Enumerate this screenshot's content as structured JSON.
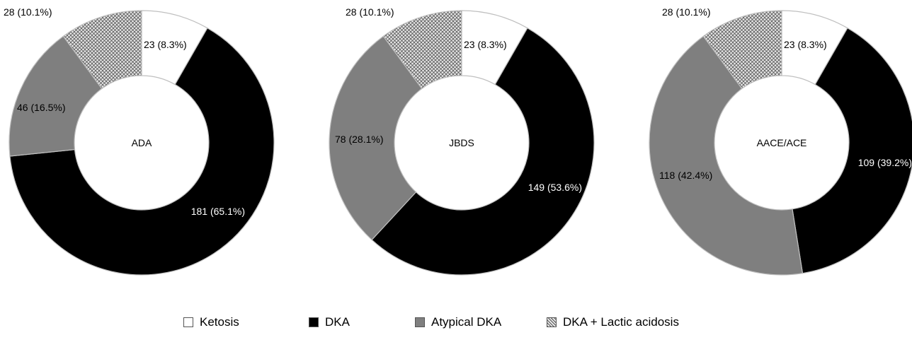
{
  "chart_data": [
    {
      "type": "pie",
      "center_label": "ADA",
      "categories": [
        "Ketosis",
        "DKA",
        "Atypical DKA",
        "DKA + Lactic acidosis"
      ],
      "values": [
        23,
        181,
        46,
        28
      ],
      "labels": [
        "23 (8.3%)",
        "181 (65.1%)",
        "46 (16.5%)",
        "28 (10.1%)"
      ]
    },
    {
      "type": "pie",
      "center_label": "JBDS",
      "categories": [
        "Ketosis",
        "DKA",
        "Atypical DKA",
        "DKA + Lactic acidosis"
      ],
      "values": [
        23,
        149,
        78,
        28
      ],
      "labels": [
        "23 (8.3%)",
        "149 (53.6%)",
        "78 (28.1%)",
        "28 (10.1%)"
      ]
    },
    {
      "type": "pie",
      "center_label": "AACE/ACE",
      "categories": [
        "Ketosis",
        "DKA",
        "Atypical DKA",
        "DKA + Lactic acidosis"
      ],
      "values": [
        23,
        109,
        118,
        28
      ],
      "labels": [
        "23 (8.3%)",
        "109 (39.2%)",
        "118 (42.4%)",
        "28 (10.1%)"
      ]
    }
  ],
  "legend": [
    {
      "label": "Ketosis",
      "fill": "white"
    },
    {
      "label": "DKA",
      "fill": "black"
    },
    {
      "label": "Atypical DKA",
      "fill": "gray"
    },
    {
      "label": "DKA + Lactic acidosis",
      "fill": "hatch"
    }
  ],
  "colors": {
    "ketosis": "#ffffff",
    "dka": "#000000",
    "atypical_dka": "#7f7f7f",
    "lactic_hatch_bg": "#e6e6e6",
    "lactic_hatch_line": "#555555",
    "edge": "#bfbfbf"
  }
}
